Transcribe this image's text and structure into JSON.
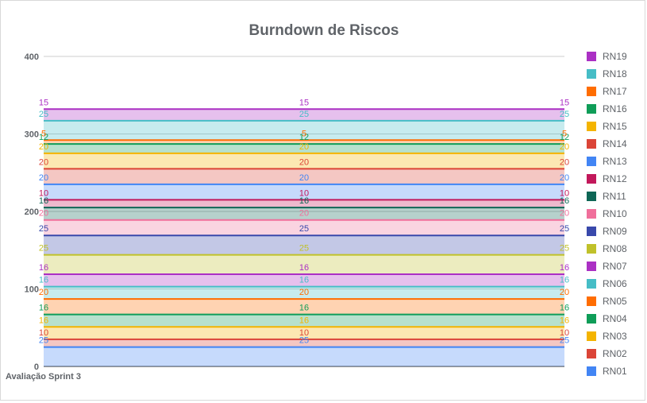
{
  "chart_data": {
    "type": "area",
    "stacked": true,
    "title": "Burndown de Riscos",
    "xlabel": "",
    "ylabel": "",
    "categories": [
      "",
      "",
      ""
    ],
    "x_tick_labels": [
      "Avaliação Sprint 3"
    ],
    "ylim": [
      0,
      400
    ],
    "yticks": [
      0,
      100,
      200,
      300,
      400
    ],
    "grid": true,
    "legend_position": "right",
    "series": [
      {
        "name": "RN01",
        "values": [
          25,
          25,
          25
        ],
        "color": "#4285f4"
      },
      {
        "name": "RN02",
        "values": [
          10,
          10,
          10
        ],
        "color": "#db4437"
      },
      {
        "name": "RN03",
        "values": [
          16,
          16,
          16
        ],
        "color": "#f4b400"
      },
      {
        "name": "RN04",
        "values": [
          16,
          16,
          16
        ],
        "color": "#0f9d58"
      },
      {
        "name": "RN05",
        "values": [
          20,
          20,
          20
        ],
        "color": "#ff6d01"
      },
      {
        "name": "RN06",
        "values": [
          16,
          16,
          16
        ],
        "color": "#46bdc6"
      },
      {
        "name": "RN07",
        "values": [
          16,
          16,
          16
        ],
        "color": "#ab30c4"
      },
      {
        "name": "RN08",
        "values": [
          25,
          25,
          25
        ],
        "color": "#c0c12a"
      },
      {
        "name": "RN09",
        "values": [
          25,
          25,
          25
        ],
        "color": "#3949ab"
      },
      {
        "name": "RN10",
        "values": [
          20,
          20,
          20
        ],
        "color": "#f06f9b"
      },
      {
        "name": "RN11",
        "values": [
          16,
          16,
          16
        ],
        "color": "#0e6655"
      },
      {
        "name": "RN12",
        "values": [
          10,
          10,
          10
        ],
        "color": "#c2185b"
      },
      {
        "name": "RN13",
        "values": [
          20,
          20,
          20
        ],
        "color": "#4285f4"
      },
      {
        "name": "RN14",
        "values": [
          20,
          20,
          20
        ],
        "color": "#db4437"
      },
      {
        "name": "RN15",
        "values": [
          20,
          20,
          20
        ],
        "color": "#f4b400"
      },
      {
        "name": "RN16",
        "values": [
          12,
          12,
          12
        ],
        "color": "#0f9d58"
      },
      {
        "name": "RN17",
        "values": [
          5,
          5,
          5
        ],
        "color": "#ff6d01"
      },
      {
        "name": "RN18",
        "values": [
          25,
          25,
          25
        ],
        "color": "#46bdc6"
      },
      {
        "name": "RN19",
        "values": [
          15,
          15,
          15
        ],
        "color": "#ab30c4"
      }
    ]
  }
}
